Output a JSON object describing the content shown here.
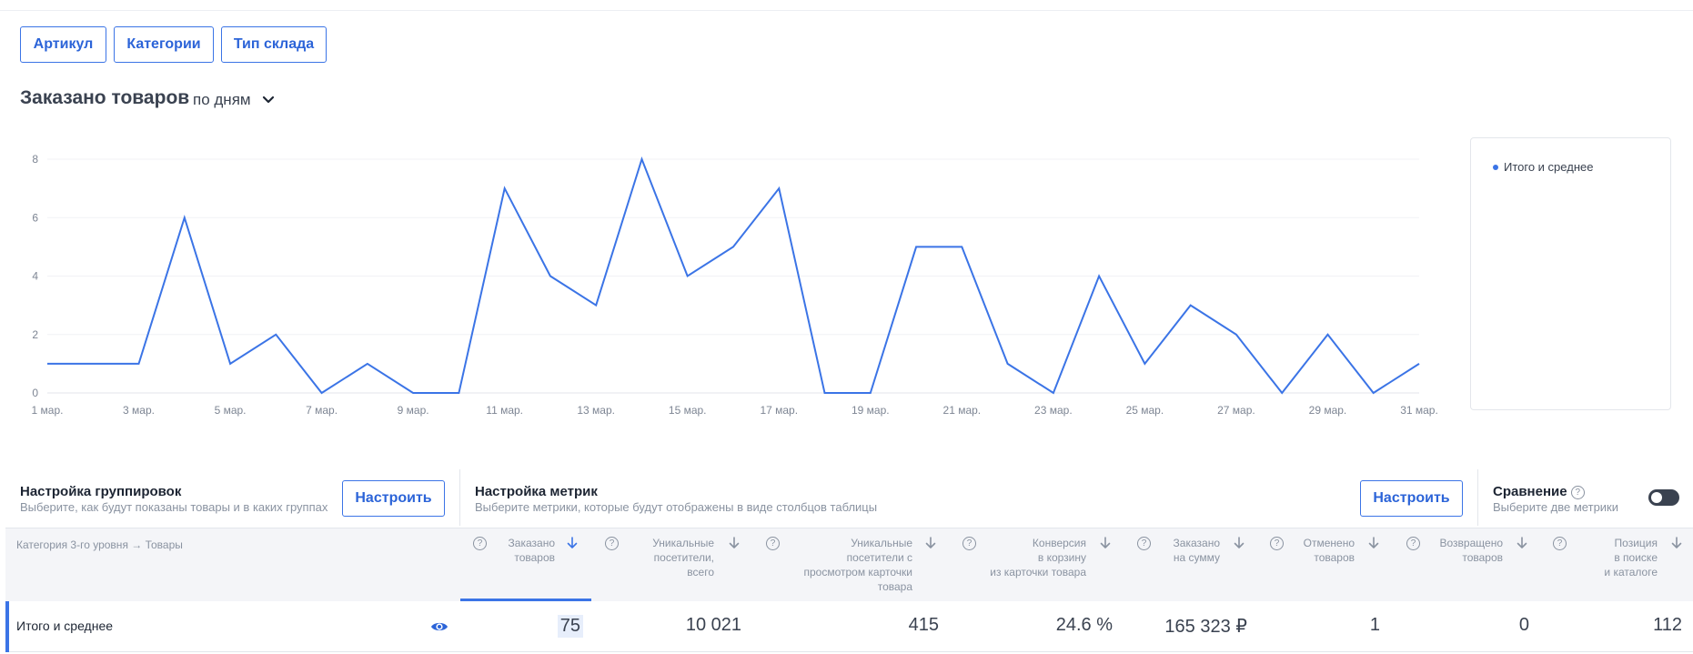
{
  "filters": [
    "Артикул",
    "Категории",
    "Тип склада"
  ],
  "chart_section": {
    "title": "Заказано товаров",
    "period": "по дням"
  },
  "legend": {
    "series_label": "Итого и среднее"
  },
  "chart_data": {
    "type": "line",
    "x": [
      "1 мар.",
      "2 мар.",
      "3 мар.",
      "4 мар.",
      "5 мар.",
      "6 мар.",
      "7 мар.",
      "8 мар.",
      "9 мар.",
      "10 мар.",
      "11 мар.",
      "12 мар.",
      "13 мар.",
      "14 мар.",
      "15 мар.",
      "16 мар.",
      "17 мар.",
      "18 мар.",
      "19 мар.",
      "20 мар.",
      "21 мар.",
      "22 мар.",
      "23 мар.",
      "24 мар.",
      "25 мар.",
      "26 мар.",
      "27 мар.",
      "28 мар.",
      "29 мар.",
      "30 мар.",
      "31 мар."
    ],
    "x_tick_labels": [
      "1 мар.",
      "3 мар.",
      "5 мар.",
      "7 мар.",
      "9 мар.",
      "11 мар.",
      "13 мар.",
      "15 мар.",
      "17 мар.",
      "19 мар.",
      "21 мар.",
      "23 мар.",
      "25 мар.",
      "27 мар.",
      "29 мар.",
      "31 мар."
    ],
    "series": [
      {
        "name": "Итого и среднее",
        "color": "#3b74e6",
        "values": [
          1,
          1,
          1,
          6,
          1,
          2,
          0,
          1,
          0,
          0,
          7,
          4,
          3,
          8,
          4,
          5,
          7,
          0,
          0,
          5,
          5,
          1,
          0,
          4,
          1,
          3,
          2,
          0,
          2,
          0,
          1
        ]
      }
    ],
    "y_ticks": [
      0,
      2,
      4,
      6,
      8
    ],
    "ylim": [
      0,
      8
    ],
    "grid": true,
    "legend_position": "right"
  },
  "grouping": {
    "title": "Настройка группировок",
    "subtitle": "Выберите, как будут показаны товары и в каких группах",
    "button": "Настроить"
  },
  "metrics_setup": {
    "title": "Настройка метрик",
    "subtitle": "Выберите метрики, которые будут отображены в виде столбцов таблицы",
    "button": "Настроить"
  },
  "comparison": {
    "title": "Сравнение",
    "subtitle": "Выберите две метрики",
    "enabled": false
  },
  "table": {
    "first_column": "Категория 3-го уровня → Товары",
    "columns": [
      {
        "lines": [
          "Заказано",
          "товаров"
        ]
      },
      {
        "lines": [
          "Уникальные",
          "посетители,",
          "всего"
        ]
      },
      {
        "lines": [
          "Уникальные",
          "посетители с",
          "просмотром карточки",
          "товара"
        ]
      },
      {
        "lines": [
          "Конверсия",
          "в корзину",
          "из карточки товара"
        ]
      },
      {
        "lines": [
          "Заказано",
          "на сумму"
        ]
      },
      {
        "lines": [
          "Отменено",
          "товаров"
        ]
      },
      {
        "lines": [
          "Возвращено",
          "товаров"
        ]
      },
      {
        "lines": [
          "Позиция",
          "в поиске",
          "и каталоге"
        ]
      }
    ],
    "row": {
      "label": "Итого и среднее",
      "values": [
        "75",
        "10 021",
        "415",
        "24.6 %",
        "165 323 ₽",
        "1",
        "0",
        "112"
      ]
    }
  },
  "colors": {
    "accent": "#3b74e6",
    "text": "#1d2533",
    "muted": "#8a93a1"
  },
  "icons": [
    "chevron-down-icon",
    "help-icon",
    "sort-down-icon",
    "eye-icon"
  ]
}
